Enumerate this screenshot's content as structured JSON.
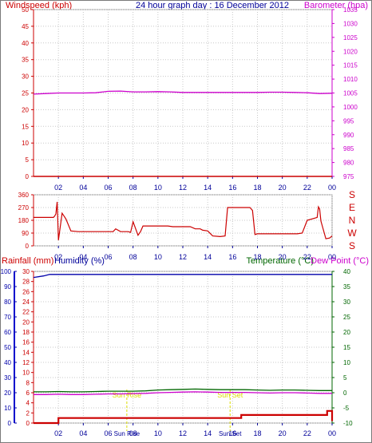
{
  "page": {
    "title": "24 hour graph day : 16 December 2012"
  },
  "colors": {
    "windspeed": "#cc0000",
    "barometer": "#cc00cc",
    "direction": "#cc0000",
    "rainfall": "#cc0000",
    "humidity": "#0000aa",
    "temperature": "#006600",
    "dewpoint": "#cc00cc",
    "sun": "#dddd00",
    "grid": "#c8c8c8"
  },
  "chart_data": [
    {
      "type": "line",
      "id": "wind-baro",
      "title": "24 hour graph day : 16 December 2012",
      "x_ticks": [
        "02",
        "04",
        "06",
        "08",
        "10",
        "12",
        "14",
        "16",
        "18",
        "20",
        "22",
        "00"
      ],
      "y_left": {
        "label": "Windspeed (kph)",
        "ticks": [
          "0",
          "5",
          "10",
          "15",
          "20",
          "25",
          "30",
          "35",
          "40",
          "45",
          "50"
        ],
        "range": [
          0,
          50
        ]
      },
      "y_right": {
        "label": "Barometer (hpa)",
        "ticks": [
          "975",
          "980",
          "985",
          "990",
          "995",
          "1000",
          "1005",
          "1010",
          "1015",
          "1020",
          "1025",
          "1030",
          "1035"
        ],
        "range": [
          975,
          1035
        ]
      },
      "grid": true,
      "series": [
        {
          "name": "Windspeed (kph)",
          "axis": "left",
          "x": [
            0,
            24
          ],
          "values": [
            0,
            0
          ]
        },
        {
          "name": "Barometer (hpa)",
          "axis": "right",
          "x": [
            0,
            1,
            2,
            3,
            4,
            5,
            6,
            7,
            8,
            9,
            10,
            11,
            12,
            13,
            14,
            15,
            16,
            17,
            18,
            19,
            20,
            21,
            22,
            23,
            24
          ],
          "values": [
            1004.6,
            1004.8,
            1005.0,
            1005.0,
            1005.0,
            1005.1,
            1005.6,
            1005.7,
            1005.4,
            1005.4,
            1005.5,
            1005.4,
            1005.2,
            1005.2,
            1005.2,
            1005.2,
            1005.2,
            1005.2,
            1005.2,
            1005.3,
            1005.3,
            1005.2,
            1005.1,
            1004.8,
            1004.9
          ]
        }
      ]
    },
    {
      "type": "line",
      "id": "direction",
      "x_ticks": [
        "02",
        "04",
        "06",
        "08",
        "10",
        "12",
        "14",
        "16",
        "18",
        "20",
        "22",
        "00"
      ],
      "y_left": {
        "ticks": [
          "0",
          "90",
          "180",
          "270",
          "360"
        ],
        "range": [
          0,
          360
        ]
      },
      "y_right": {
        "ticks": [
          "S",
          "W",
          "N",
          "E",
          "S"
        ]
      },
      "grid": true,
      "series": [
        {
          "name": "Wind direction",
          "x": [
            0,
            1.6,
            1.7,
            1.8,
            1.9,
            2.0,
            2.3,
            2.6,
            3.0,
            3.6,
            6.4,
            6.6,
            7.0,
            7.4,
            7.6,
            7.8,
            8.0,
            8.4,
            8.6,
            8.8,
            10.8,
            11.2,
            12.6,
            13.0,
            13.4,
            13.6,
            14.0,
            14.4,
            15.0,
            15.4,
            15.6,
            17.4,
            17.6,
            17.8,
            18.0,
            21.2,
            21.6,
            22.0,
            22.8,
            22.9,
            23.0,
            23.1,
            23.5,
            23.8,
            24
          ],
          "values": [
            200,
            200,
            210,
            225,
            310,
            40,
            230,
            190,
            105,
            100,
            100,
            120,
            100,
            100,
            100,
            95,
            170,
            75,
            100,
            140,
            140,
            135,
            135,
            120,
            120,
            110,
            105,
            70,
            65,
            70,
            270,
            270,
            250,
            80,
            85,
            85,
            90,
            180,
            200,
            275,
            260,
            175,
            50,
            55,
            70
          ]
        }
      ]
    },
    {
      "type": "line",
      "id": "temp-humidity-rain",
      "x_ticks": [
        "02",
        "04",
        "06",
        "08",
        "10",
        "12",
        "14",
        "16",
        "18",
        "20",
        "22",
        "00"
      ],
      "y_humidity": {
        "label": "Humidity (%)",
        "ticks": [
          "0",
          "10",
          "20",
          "30",
          "40",
          "50",
          "60",
          "70",
          "80",
          "90",
          "100"
        ],
        "range": [
          0,
          100
        ]
      },
      "y_rainfall": {
        "label": "Rainfall (mm)",
        "ticks": [
          "0",
          "2",
          "4",
          "6",
          "8",
          "10",
          "12",
          "14",
          "16",
          "18",
          "20",
          "22",
          "24",
          "26",
          "28",
          "30"
        ],
        "range": [
          0,
          30
        ]
      },
      "y_temperature": {
        "label": "Temperature (°C)",
        "ticks": [
          "-10",
          "-5",
          "0",
          "5",
          "10",
          "15",
          "20",
          "25",
          "30",
          "35",
          "40"
        ],
        "range": [
          -10,
          40
        ]
      },
      "dewpoint_label": "Dew Point (°C)",
      "grid": true,
      "annotations": [
        {
          "label": "Sun Rise",
          "x": 7.5
        },
        {
          "label": "Sun Set",
          "x": 15.8
        }
      ],
      "series": [
        {
          "name": "Humidity (%)",
          "axis": "humidity",
          "x": [
            0,
            0.8,
            1.3,
            3,
            6,
            9,
            12,
            15,
            18,
            21,
            24
          ],
          "values": [
            96,
            97,
            98,
            98,
            98,
            98,
            98,
            98,
            98,
            98,
            98
          ]
        },
        {
          "name": "Temperature (°C)",
          "axis": "temperature",
          "x": [
            0,
            1,
            2,
            3,
            4,
            5,
            6,
            7,
            8,
            9,
            10,
            11,
            12,
            13,
            14,
            15,
            16,
            17,
            18,
            19,
            20,
            21,
            22,
            23,
            24
          ],
          "values": [
            0.3,
            0.3,
            0.4,
            0.3,
            0.3,
            0.4,
            0.5,
            0.5,
            0.5,
            0.6,
            0.9,
            1.0,
            1.1,
            1.2,
            1.1,
            1.0,
            1.0,
            1.0,
            0.9,
            0.8,
            0.9,
            0.9,
            0.8,
            0.7,
            0.7
          ]
        },
        {
          "name": "Dew Point (°C)",
          "axis": "temperature",
          "x": [
            0,
            1,
            2,
            3,
            4,
            5,
            6,
            7,
            8,
            9,
            10,
            11,
            12,
            13,
            14,
            15,
            16,
            17,
            18,
            19,
            20,
            21,
            22,
            23,
            24
          ],
          "values": [
            -0.6,
            -0.6,
            -0.5,
            -0.6,
            -0.6,
            -0.5,
            -0.4,
            -0.4,
            -0.3,
            -0.2,
            0.0,
            0.1,
            0.2,
            0.3,
            0.2,
            0.1,
            0.1,
            0.1,
            0.0,
            -0.1,
            0.0,
            0.0,
            -0.1,
            -0.2,
            -0.2
          ]
        },
        {
          "name": "Rainfall (mm)",
          "axis": "rainfall",
          "x": [
            0,
            1.9,
            2.0,
            16.6,
            16.7,
            23.5,
            23.6,
            23.9,
            24
          ],
          "values": [
            0,
            0,
            1.0,
            1.0,
            1.6,
            1.6,
            2.4,
            2.4,
            0.4
          ]
        }
      ]
    }
  ]
}
